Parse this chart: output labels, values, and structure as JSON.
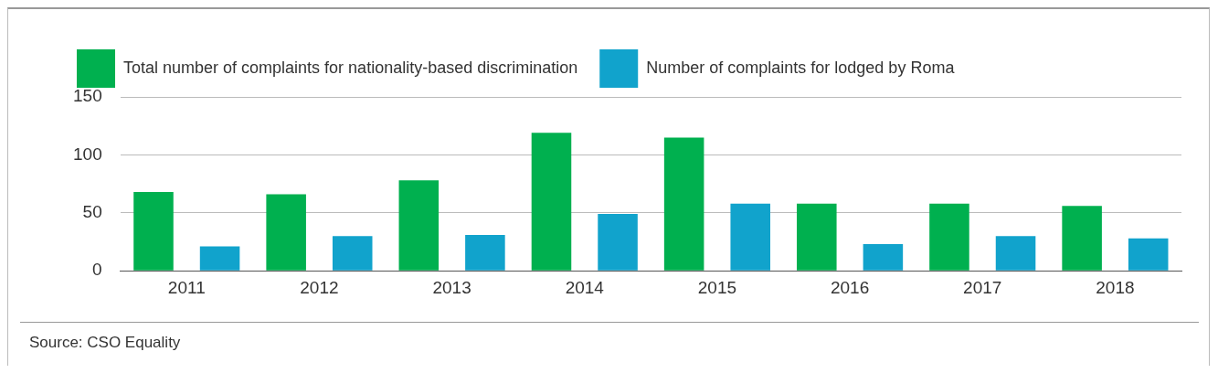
{
  "chart_data": {
    "type": "bar",
    "categories": [
      "2011",
      "2012",
      "2013",
      "2014",
      "2015",
      "2016",
      "2017",
      "2018"
    ],
    "series": [
      {
        "name": "Total number of complaints for nationality-based discrimination",
        "color": "#00b04f",
        "values": [
          68,
          66,
          78,
          119,
          115,
          58,
          58,
          56
        ]
      },
      {
        "name": "Number of complaints for lodged by Roma",
        "color": "#11a3cc",
        "values": [
          21,
          30,
          31,
          49,
          58,
          23,
          30,
          28
        ]
      }
    ],
    "ylim": [
      0,
      150
    ],
    "yticks": [
      0,
      50,
      100,
      150
    ],
    "grid": "y",
    "legend": "top left",
    "annotations": [
      "Source: CSO Equality"
    ]
  }
}
